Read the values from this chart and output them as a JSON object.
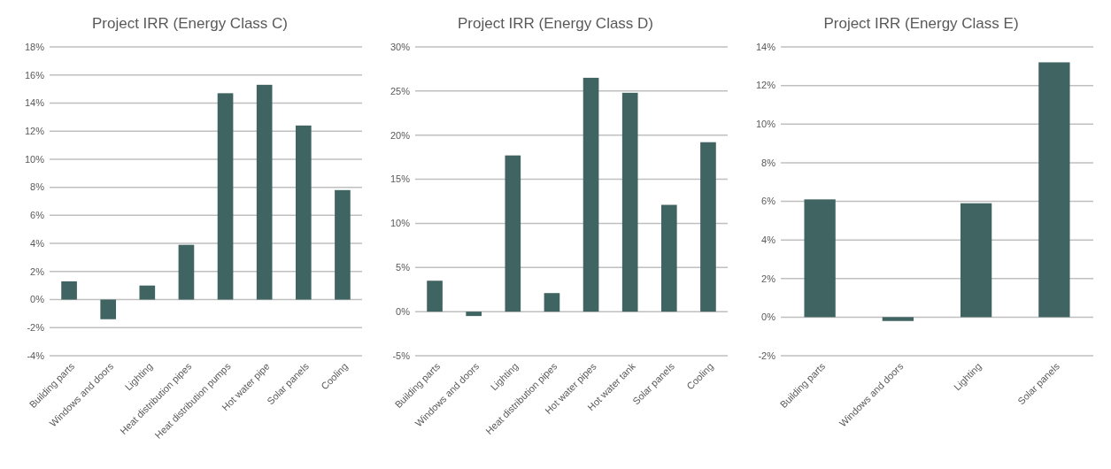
{
  "chart_data": [
    {
      "type": "bar",
      "title": "Project IRR (Energy Class C)",
      "categories": [
        "Building parts",
        "Windows and doors",
        "Lighting",
        "Heat distribution pipes",
        "Heat distribution pumps",
        "Hot water pipe",
        "Solar panels",
        "Cooling"
      ],
      "values": [
        1.3,
        -1.4,
        1.0,
        3.9,
        14.7,
        15.3,
        12.4,
        7.8
      ],
      "color": "#3f6462",
      "ylim": [
        -4,
        18
      ],
      "yticks": [
        {
          "value": -4,
          "label": "-4%"
        },
        {
          "value": -2,
          "label": "-2%"
        },
        {
          "value": 0,
          "label": "0%"
        },
        {
          "value": 2,
          "label": "2%"
        },
        {
          "value": 4,
          "label": "4%"
        },
        {
          "value": 6,
          "label": "6%"
        },
        {
          "value": 8,
          "label": "8%"
        },
        {
          "value": 10,
          "label": "10%"
        },
        {
          "value": 12,
          "label": "12%"
        },
        {
          "value": 14,
          "label": "14%"
        },
        {
          "value": 16,
          "label": "16%"
        },
        {
          "value": 18,
          "label": "18%"
        }
      ],
      "grid": "y"
    },
    {
      "type": "bar",
      "title": "Project IRR (Energy Class D)",
      "categories": [
        "Building parts",
        "Windows and doors",
        "Lighting",
        "Heat distribution pipes",
        "Hot water pipes",
        "Hot water tank",
        "Solar panels",
        "Cooling"
      ],
      "values": [
        3.5,
        -0.5,
        17.7,
        2.1,
        26.5,
        24.8,
        12.1,
        19.2
      ],
      "color": "#3f6462",
      "ylim": [
        -5,
        30
      ],
      "yticks": [
        {
          "value": -5,
          "label": "-5%"
        },
        {
          "value": 0,
          "label": "0%"
        },
        {
          "value": 5,
          "label": "5%"
        },
        {
          "value": 10,
          "label": "10%"
        },
        {
          "value": 15,
          "label": "15%"
        },
        {
          "value": 20,
          "label": "20%"
        },
        {
          "value": 25,
          "label": "25%"
        },
        {
          "value": 30,
          "label": "30%"
        }
      ],
      "grid": "y"
    },
    {
      "type": "bar",
      "title": "Project IRR (Energy Class E)",
      "categories": [
        "Building parts",
        "Windows and doors",
        "Lighting",
        "Solar panels"
      ],
      "values": [
        6.1,
        -0.2,
        5.9,
        13.2
      ],
      "color": "#3f6462",
      "ylim": [
        -2,
        14
      ],
      "yticks": [
        {
          "value": -2,
          "label": "-2%"
        },
        {
          "value": 0,
          "label": "0%"
        },
        {
          "value": 2,
          "label": "2%"
        },
        {
          "value": 4,
          "label": "4%"
        },
        {
          "value": 6,
          "label": "6%"
        },
        {
          "value": 8,
          "label": "8%"
        },
        {
          "value": 10,
          "label": "10%"
        },
        {
          "value": 12,
          "label": "12%"
        },
        {
          "value": 14,
          "label": "14%"
        }
      ],
      "grid": "y"
    }
  ]
}
